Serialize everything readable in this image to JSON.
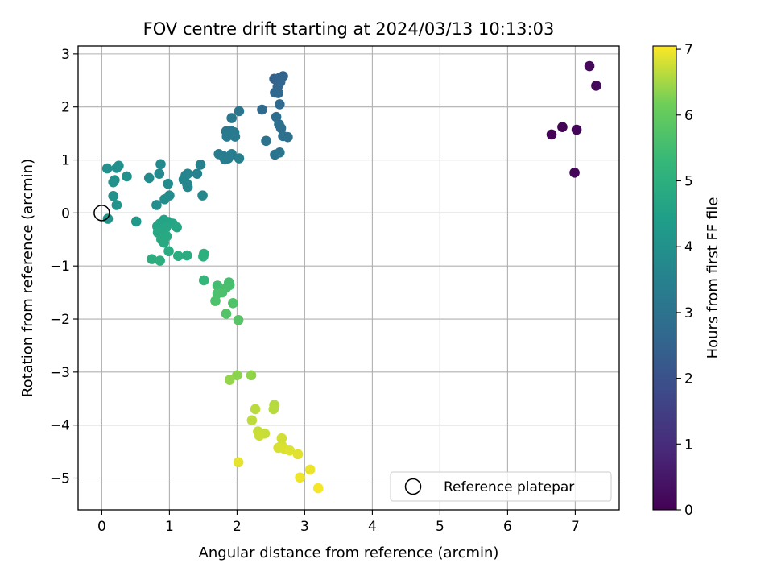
{
  "chart_data": {
    "type": "scatter",
    "title": "FOV centre drift starting at 2024/03/13 10:13:03",
    "xlabel": "Angular distance from reference (arcmin)",
    "ylabel": "Rotation from reference (arcmin)",
    "xlim": [
      -0.35,
      7.65
    ],
    "ylim": [
      -5.6,
      3.15
    ],
    "xticks": [
      "0",
      "1",
      "2",
      "3",
      "4",
      "5",
      "6",
      "7"
    ],
    "yticks": [
      "−5",
      "−4",
      "−3",
      "−2",
      "−1",
      "0",
      "1",
      "2",
      "3"
    ],
    "grid": true,
    "legend": {
      "position": "lower-right",
      "entries": [
        "Reference platepar"
      ]
    },
    "colorbar": {
      "label": "Hours from first FF file",
      "colormap": "viridis",
      "range": [
        0,
        7.05
      ],
      "ticks": [
        "0",
        "1",
        "2",
        "3",
        "4",
        "5",
        "6",
        "7"
      ]
    },
    "reference_point": {
      "x": 0,
      "y": 0
    },
    "points": [
      {
        "x": 6.65,
        "y": 1.48,
        "t": 0.05
      },
      {
        "x": 6.81,
        "y": 1.62,
        "t": 0.08
      },
      {
        "x": 6.99,
        "y": 0.76,
        "t": 0.12
      },
      {
        "x": 7.02,
        "y": 1.57,
        "t": 0.1
      },
      {
        "x": 7.21,
        "y": 2.77,
        "t": 0.15
      },
      {
        "x": 7.31,
        "y": 2.4,
        "t": 0.18
      },
      {
        "x": 2.55,
        "y": 2.53,
        "t": 2.5
      },
      {
        "x": 2.63,
        "y": 2.55,
        "t": 2.52
      },
      {
        "x": 2.68,
        "y": 2.58,
        "t": 2.55
      },
      {
        "x": 2.6,
        "y": 2.38,
        "t": 2.58
      },
      {
        "x": 2.64,
        "y": 2.47,
        "t": 2.6
      },
      {
        "x": 2.56,
        "y": 2.27,
        "t": 2.63
      },
      {
        "x": 2.61,
        "y": 2.26,
        "t": 2.66
      },
      {
        "x": 2.63,
        "y": 2.05,
        "t": 2.7
      },
      {
        "x": 2.37,
        "y": 1.95,
        "t": 2.75
      },
      {
        "x": 2.58,
        "y": 1.81,
        "t": 2.8
      },
      {
        "x": 2.62,
        "y": 1.67,
        "t": 2.85
      },
      {
        "x": 2.65,
        "y": 1.6,
        "t": 2.88
      },
      {
        "x": 2.68,
        "y": 1.45,
        "t": 2.92
      },
      {
        "x": 2.75,
        "y": 1.43,
        "t": 2.95
      },
      {
        "x": 2.43,
        "y": 1.36,
        "t": 3.0
      },
      {
        "x": 2.56,
        "y": 1.1,
        "t": 3.05
      },
      {
        "x": 2.63,
        "y": 1.14,
        "t": 3.08
      },
      {
        "x": 2.03,
        "y": 1.92,
        "t": 3.12
      },
      {
        "x": 1.92,
        "y": 1.79,
        "t": 3.15
      },
      {
        "x": 1.84,
        "y": 1.54,
        "t": 3.18
      },
      {
        "x": 1.91,
        "y": 1.55,
        "t": 3.2
      },
      {
        "x": 1.96,
        "y": 1.52,
        "t": 3.22
      },
      {
        "x": 1.85,
        "y": 1.44,
        "t": 3.25
      },
      {
        "x": 1.97,
        "y": 1.44,
        "t": 3.27
      },
      {
        "x": 1.73,
        "y": 1.11,
        "t": 3.3
      },
      {
        "x": 1.79,
        "y": 1.08,
        "t": 3.33
      },
      {
        "x": 1.92,
        "y": 1.11,
        "t": 3.35
      },
      {
        "x": 1.82,
        "y": 1.01,
        "t": 3.37
      },
      {
        "x": 1.87,
        "y": 1.03,
        "t": 3.4
      },
      {
        "x": 2.03,
        "y": 1.03,
        "t": 3.42
      },
      {
        "x": 1.46,
        "y": 0.91,
        "t": 3.5
      },
      {
        "x": 1.41,
        "y": 0.74,
        "t": 3.55
      },
      {
        "x": 1.27,
        "y": 0.74,
        "t": 3.58
      },
      {
        "x": 1.24,
        "y": 0.71,
        "t": 3.6
      },
      {
        "x": 1.21,
        "y": 0.63,
        "t": 3.62
      },
      {
        "x": 1.26,
        "y": 0.55,
        "t": 3.65
      },
      {
        "x": 1.27,
        "y": 0.49,
        "t": 3.67
      },
      {
        "x": 1.49,
        "y": 0.33,
        "t": 3.7
      },
      {
        "x": 0.87,
        "y": 0.92,
        "t": 3.75
      },
      {
        "x": 0.85,
        "y": 0.74,
        "t": 3.78
      },
      {
        "x": 0.7,
        "y": 0.66,
        "t": 3.8
      },
      {
        "x": 0.98,
        "y": 0.55,
        "t": 3.83
      },
      {
        "x": 1.0,
        "y": 0.33,
        "t": 3.85
      },
      {
        "x": 0.93,
        "y": 0.26,
        "t": 3.88
      },
      {
        "x": 0.81,
        "y": 0.15,
        "t": 3.9
      },
      {
        "x": 0.08,
        "y": 0.84,
        "t": 3.95
      },
      {
        "x": 0.22,
        "y": 0.85,
        "t": 3.97
      },
      {
        "x": 0.25,
        "y": 0.89,
        "t": 3.98
      },
      {
        "x": 0.37,
        "y": 0.69,
        "t": 4.0
      },
      {
        "x": 0.17,
        "y": 0.58,
        "t": 4.02
      },
      {
        "x": 0.19,
        "y": 0.62,
        "t": 4.04
      },
      {
        "x": 0.17,
        "y": 0.32,
        "t": 4.06
      },
      {
        "x": 0.22,
        "y": 0.15,
        "t": 4.08
      },
      {
        "x": 0.09,
        "y": -0.11,
        "t": 4.1
      },
      {
        "x": 0.51,
        "y": -0.16,
        "t": 4.25
      },
      {
        "x": 0.92,
        "y": -0.13,
        "t": 4.55
      },
      {
        "x": 0.99,
        "y": -0.17,
        "t": 4.6
      },
      {
        "x": 0.86,
        "y": -0.2,
        "t": 4.62
      },
      {
        "x": 0.82,
        "y": -0.25,
        "t": 4.64
      },
      {
        "x": 1.05,
        "y": -0.2,
        "t": 4.66
      },
      {
        "x": 0.95,
        "y": -0.27,
        "t": 4.68
      },
      {
        "x": 1.11,
        "y": -0.27,
        "t": 4.7
      },
      {
        "x": 0.83,
        "y": -0.37,
        "t": 4.72
      },
      {
        "x": 0.92,
        "y": -0.4,
        "t": 4.74
      },
      {
        "x": 0.96,
        "y": -0.44,
        "t": 4.76
      },
      {
        "x": 0.88,
        "y": -0.5,
        "t": 4.78
      },
      {
        "x": 0.92,
        "y": -0.56,
        "t": 4.8
      },
      {
        "x": 0.99,
        "y": -0.72,
        "t": 4.85
      },
      {
        "x": 1.13,
        "y": -0.81,
        "t": 4.88
      },
      {
        "x": 1.26,
        "y": -0.8,
        "t": 4.9
      },
      {
        "x": 0.74,
        "y": -0.87,
        "t": 4.95
      },
      {
        "x": 0.86,
        "y": -0.9,
        "t": 4.97
      },
      {
        "x": 1.51,
        "y": -0.77,
        "t": 5.0
      },
      {
        "x": 1.5,
        "y": -0.82,
        "t": 5.02
      },
      {
        "x": 1.51,
        "y": -1.27,
        "t": 5.25
      },
      {
        "x": 1.71,
        "y": -1.37,
        "t": 5.5
      },
      {
        "x": 1.88,
        "y": -1.31,
        "t": 5.55
      },
      {
        "x": 1.89,
        "y": -1.36,
        "t": 5.57
      },
      {
        "x": 1.84,
        "y": -1.41,
        "t": 5.6
      },
      {
        "x": 1.71,
        "y": -1.52,
        "t": 5.62
      },
      {
        "x": 1.78,
        "y": -1.5,
        "t": 5.64
      },
      {
        "x": 1.68,
        "y": -1.66,
        "t": 5.66
      },
      {
        "x": 1.94,
        "y": -1.7,
        "t": 5.7
      },
      {
        "x": 1.84,
        "y": -1.9,
        "t": 5.75
      },
      {
        "x": 2.02,
        "y": -2.02,
        "t": 5.8
      },
      {
        "x": 2.0,
        "y": -3.06,
        "t": 6.35
      },
      {
        "x": 2.21,
        "y": -3.06,
        "t": 6.38
      },
      {
        "x": 1.89,
        "y": -3.15,
        "t": 6.4
      },
      {
        "x": 2.55,
        "y": -3.62,
        "t": 6.6
      },
      {
        "x": 2.54,
        "y": -3.7,
        "t": 6.62
      },
      {
        "x": 2.27,
        "y": -3.7,
        "t": 6.64
      },
      {
        "x": 2.22,
        "y": -3.91,
        "t": 6.66
      },
      {
        "x": 2.31,
        "y": -4.12,
        "t": 6.7
      },
      {
        "x": 2.41,
        "y": -4.16,
        "t": 6.72
      },
      {
        "x": 2.33,
        "y": -4.2,
        "t": 6.74
      },
      {
        "x": 2.66,
        "y": -4.25,
        "t": 6.78
      },
      {
        "x": 2.66,
        "y": -4.38,
        "t": 6.8
      },
      {
        "x": 2.61,
        "y": -4.43,
        "t": 6.82
      },
      {
        "x": 2.7,
        "y": -4.45,
        "t": 6.84
      },
      {
        "x": 2.78,
        "y": -4.48,
        "t": 6.86
      },
      {
        "x": 2.9,
        "y": -4.55,
        "t": 6.88
      },
      {
        "x": 2.02,
        "y": -4.7,
        "t": 6.9
      },
      {
        "x": 3.08,
        "y": -4.84,
        "t": 6.94
      },
      {
        "x": 2.93,
        "y": -4.99,
        "t": 6.96
      },
      {
        "x": 3.2,
        "y": -5.19,
        "t": 7.0
      }
    ]
  }
}
